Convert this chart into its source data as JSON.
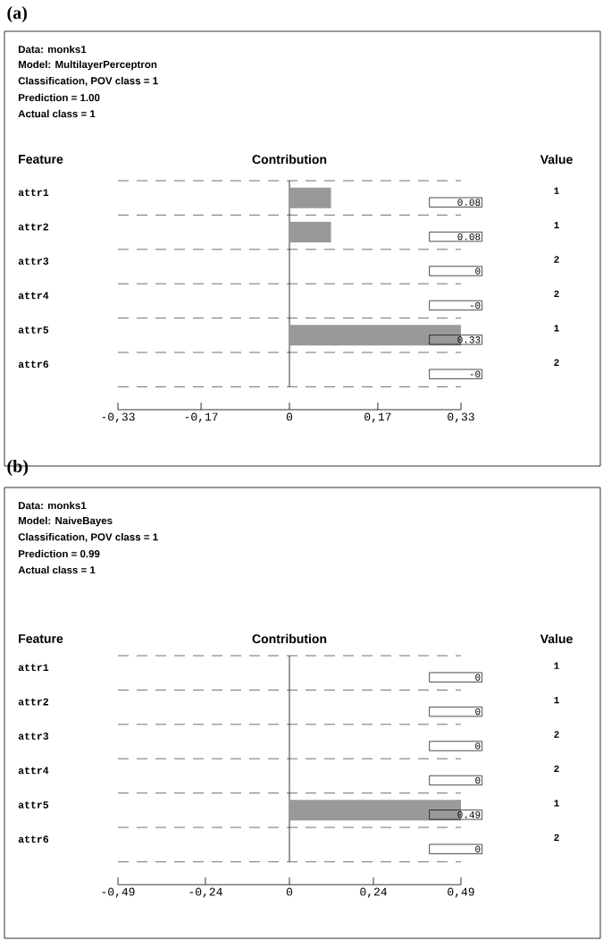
{
  "chart_data": [
    {
      "type": "bar",
      "orientation": "horizontal",
      "title": "(a)",
      "xlabel": "Contribution",
      "ylabel": "Feature",
      "y2label": "Value",
      "categories": [
        "attr1",
        "attr2",
        "attr3",
        "attr4",
        "attr5",
        "attr6"
      ],
      "values": [
        0.08,
        0.08,
        0,
        0,
        0.33,
        0
      ],
      "value_labels": [
        "0.08",
        "0.08",
        "0",
        "-0",
        "0.33",
        "-0"
      ],
      "color": "#999999",
      "xlim": [
        -0.33,
        0.33
      ],
      "xticks": [
        {
          "value": -0.33,
          "label": "-0,33"
        },
        {
          "value": -0.17,
          "label": "-0,17"
        },
        0,
        {
          "value": 0.17,
          "label": "0,17"
        },
        {
          "value": 0.33,
          "label": "0,33"
        }
      ],
      "grid": "y",
      "ref_lines": [
        {
          "axis": "x",
          "value": 0,
          "color": "#000000"
        }
      ],
      "annotations": [
        "Data: monks1",
        "Model: MultilayerPerceptron",
        "Classification, POV class = 1",
        "Prediction = 1.00",
        "Actual class = 1",
        "1",
        "1",
        "2",
        "2",
        "1",
        "2"
      ]
    },
    {
      "type": "bar",
      "orientation": "horizontal",
      "title": "(b)",
      "xlabel": "Contribution",
      "ylabel": "Feature",
      "y2label": "Value",
      "categories": [
        "attr1",
        "attr2",
        "attr3",
        "attr4",
        "attr5",
        "attr6"
      ],
      "values": [
        0,
        0,
        0,
        0,
        0.49,
        0
      ],
      "value_labels": [
        "0",
        "0",
        "0",
        "0",
        "0.49",
        "0"
      ],
      "color": "#999999",
      "xlim": [
        -0.49,
        0.49
      ],
      "xticks": [
        {
          "value": -0.49,
          "label": "-0,49"
        },
        {
          "value": -0.24,
          "label": "-0,24"
        },
        0,
        {
          "value": 0.24,
          "label": "0,24"
        },
        {
          "value": 0.49,
          "label": "0,49"
        }
      ],
      "grid": "y",
      "ref_lines": [
        {
          "axis": "x",
          "value": 0,
          "color": "#000000"
        }
      ],
      "annotations": [
        "Data: monks1",
        "Model: NaiveBayes",
        "Classification, POV class = 1",
        "Prediction = 0.99",
        "Actual class = 1",
        "1",
        "1",
        "2",
        "2",
        "1",
        "2"
      ]
    }
  ]
}
